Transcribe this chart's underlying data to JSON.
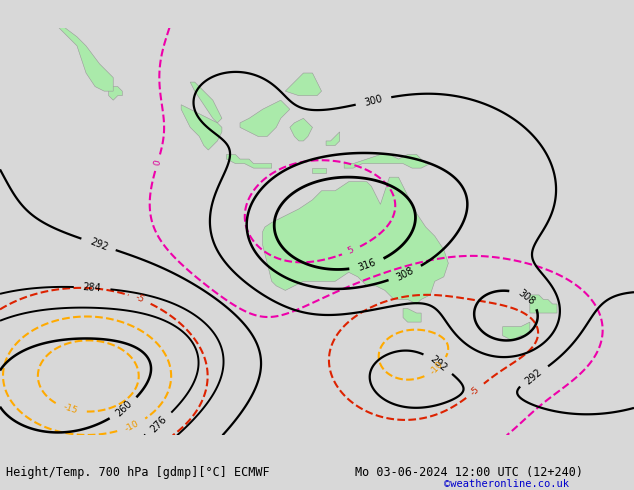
{
  "title_left": "Height/Temp. 700 hPa [gdmp][°C] ECMWF",
  "title_right": "Mo 03-06-2024 12:00 UTC (12+240)",
  "copyright": "©weatheronline.co.uk",
  "background_color": "#d8d8d8",
  "land_color": "#aaeaaa",
  "border_color": "#999999",
  "fig_width": 6.34,
  "fig_height": 4.9,
  "dpi": 100,
  "title_fontsize": 8.5,
  "copyright_fontsize": 7.5,
  "copyright_color": "#0000cc"
}
